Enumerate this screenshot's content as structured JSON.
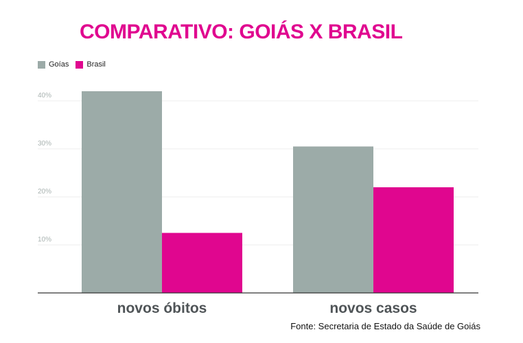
{
  "title": "COMPARATIVO: GOIÁS X BRASIL",
  "source": "Fonte: Secretaria de Estado da Saúde de Goiás",
  "chart_data": {
    "type": "bar",
    "categories": [
      "novos óbitos",
      "novos casos"
    ],
    "series": [
      {
        "name": "Goías",
        "color": "#9caba8",
        "values": [
          42,
          30.5
        ]
      },
      {
        "name": "Brasil",
        "color": "#e0068f",
        "values": [
          12.5,
          22
        ]
      }
    ],
    "yticks": [
      "10%",
      "20%",
      "30%",
      "40%"
    ],
    "ytick_values": [
      10,
      20,
      30,
      40
    ],
    "ylim": [
      0,
      40
    ],
    "grid": true,
    "legend": "top-left"
  }
}
